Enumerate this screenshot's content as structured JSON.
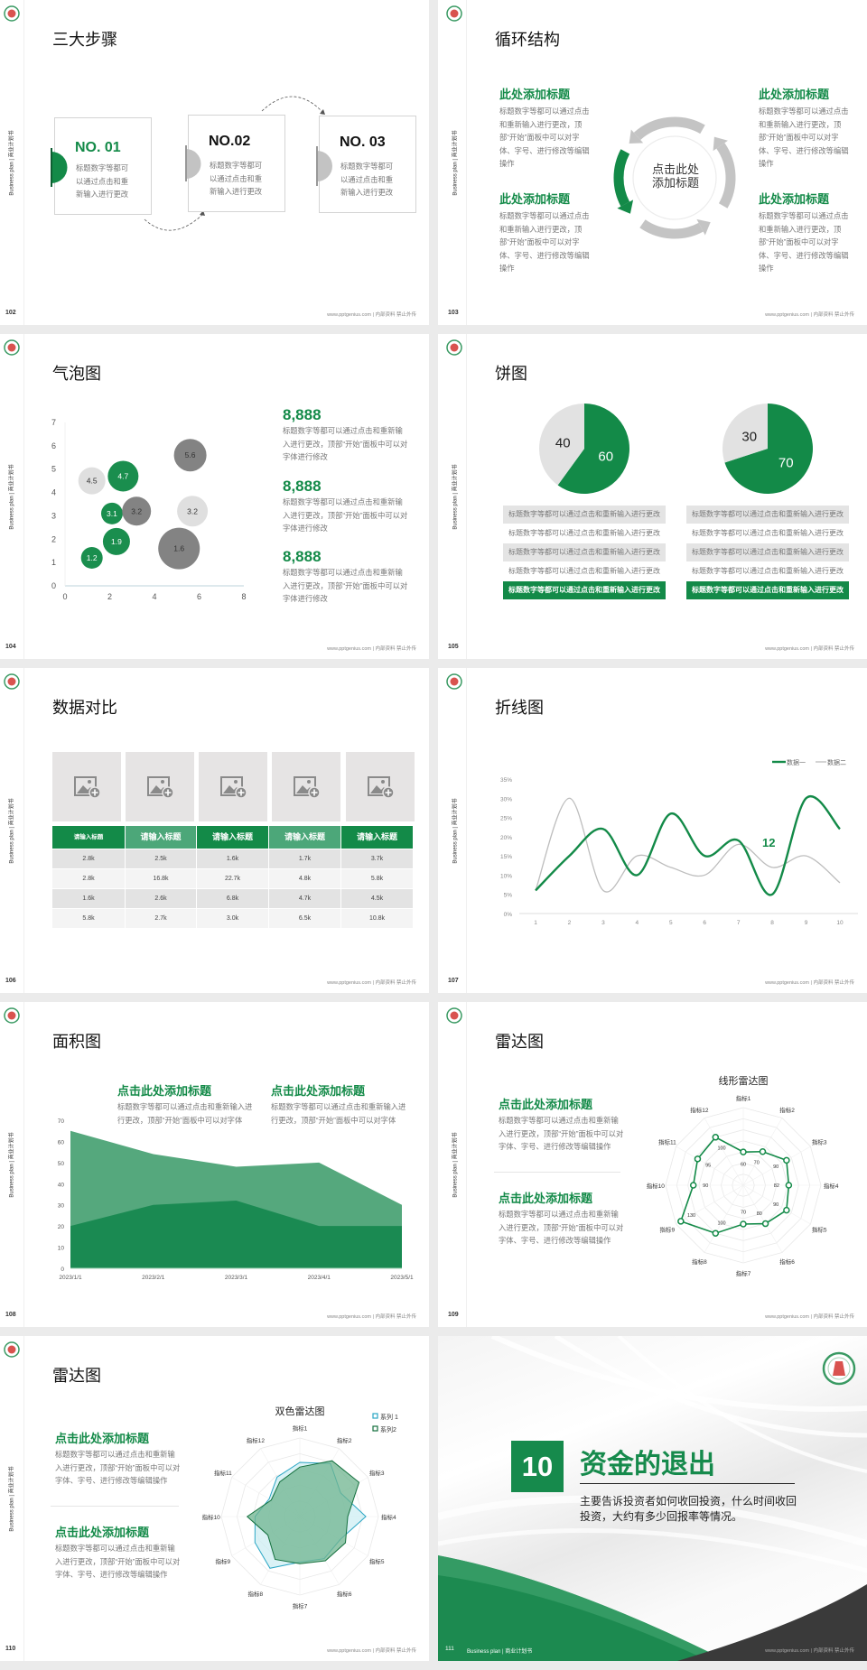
{
  "common": {
    "sidebar_text": "Business plan | 商业计划书",
    "footer": "www.pptgenius.com | 内部资料 禁止外传",
    "logo_icon": "school-seal-logo"
  },
  "colors": {
    "green": "#138a48",
    "green_light": "#55a87d",
    "gray_light": "#e2e2e2",
    "gray_dark": "#7f7f7f",
    "cyan": "#2aa6c4"
  },
  "slides": {
    "s102": {
      "page": "102",
      "title": "三大步骤",
      "steps": [
        {
          "label": "NO. 01",
          "body": "标题数字等都可以通过点击和重新输入进行更改"
        },
        {
          "label": "NO.02",
          "body": "标题数字等都可以通过点击和重新输入进行更改"
        },
        {
          "label": "NO. 03",
          "body": "标题数字等都可以通过点击和重新输入进行更改"
        }
      ]
    },
    "s103": {
      "page": "103",
      "title": "循环结构",
      "center": "点击此处添加标题",
      "blocks": [
        {
          "title": "此处添加标题",
          "body": "标题数字等都可以通过点击和重新输入进行更改，顶部“开始”面板中可以对字体、字号、进行修改等编辑操作"
        },
        {
          "title": "此处添加标题",
          "body": "标题数字等都可以通过点击和重新输入进行更改，顶部“开始”面板中可以对字体、字号、进行修改等编辑操作"
        },
        {
          "title": "此处添加标题",
          "body": "标题数字等都可以通过点击和重新输入进行更改，顶部“开始”面板中可以对字体、字号、进行修改等编辑操作"
        },
        {
          "title": "此处添加标题",
          "body": "标题数字等都可以通过点击和重新输入进行更改，顶部“开始”面板中可以对字体、字号、进行修改等编辑操作"
        }
      ]
    },
    "s104": {
      "page": "104",
      "title": "气泡图",
      "stats": [
        {
          "value": "8,888",
          "body": "标题数字等都可以通过点击和重新输入进行更改，顶部“开始”面板中可以对字体进行修改"
        },
        {
          "value": "8,888",
          "body": "标题数字等都可以通过点击和重新输入进行更改，顶部“开始”面板中可以对字体进行修改"
        },
        {
          "value": "8,888",
          "body": "标题数字等都可以通过点击和重新输入进行更改，顶部“开始”面板中可以对字体进行修改"
        }
      ]
    },
    "s105": {
      "page": "105",
      "title": "饼图",
      "rows_left": [
        "标题数字等都可以通过点击和重新输入进行更改",
        "标题数字等都可以通过点击和重新输入进行更改",
        "标题数字等都可以通过点击和重新输入进行更改",
        "标题数字等都可以通过点击和重新输入进行更改",
        "标题数字等都可以通过点击和重新输入进行更改"
      ],
      "rows_right": [
        "标题数字等都可以通过点击和重新输入进行更改",
        "标题数字等都可以通过点击和重新输入进行更改",
        "标题数字等都可以通过点击和重新输入进行更改",
        "标题数字等都可以通过点击和重新输入进行更改",
        "标题数字等都可以通过点击和重新输入进行更改"
      ]
    },
    "s106": {
      "page": "106",
      "title": "数据对比",
      "image_icon": "add-image-icon",
      "headers": [
        "请输入标题",
        "请输入标题",
        "请输入标题",
        "请输入标题",
        "请输入标题"
      ],
      "rows": [
        [
          "2.8k",
          "2.5k",
          "1.6k",
          "1.7k",
          "3.7k"
        ],
        [
          "2.8k",
          "16.8k",
          "22.7k",
          "4.8k",
          "5.8k"
        ],
        [
          "1.6k",
          "2.6k",
          "6.8k",
          "4.7k",
          "4.5k"
        ],
        [
          "5.8k",
          "2.7k",
          "3.0k",
          "6.5k",
          "10.8k"
        ]
      ]
    },
    "s107": {
      "page": "107",
      "title": "折线图",
      "annotation": "12"
    },
    "s108": {
      "page": "108",
      "title": "面积图",
      "blocks": [
        {
          "title": "点击此处添加标题",
          "body": "标题数字等都可以通过点击和重新输入进行更改，顶部“开始”面板中可以对字体"
        },
        {
          "title": "点击此处添加标题",
          "body": "标题数字等都可以通过点击和重新输入进行更改，顶部“开始”面板中可以对字体"
        }
      ]
    },
    "s109": {
      "page": "109",
      "title": "雷达图",
      "blocks": [
        {
          "title": "点击此处添加标题",
          "body": "标题数字等都可以通过点击和重新输入进行更改，顶部“开始”面板中可以对字体、字号、进行修改等编辑操作"
        },
        {
          "title": "点击此处添加标题",
          "body": "标题数字等都可以通过点击和重新输入进行更改，顶部“开始”面板中可以对字体、字号、进行修改等编辑操作"
        }
      ]
    },
    "s110": {
      "page": "110",
      "title": "雷达图",
      "blocks": [
        {
          "title": "点击此处添加标题",
          "body": "标题数字等都可以通过点击和重新输入进行更改，顶部“开始”面板中可以对字体、字号、进行修改等编辑操作"
        },
        {
          "title": "点击此处添加标题",
          "body": "标题数字等都可以通过点击和重新输入进行更改，顶部“开始”面板中可以对字体、字号、进行修改等编辑操作"
        }
      ]
    },
    "s111": {
      "page": "111",
      "number": "10",
      "title": "资金的退出",
      "body": "主要告诉投资者如何收回投资，什么时间收回投资，大约有多少回报率等情况。",
      "footer_left": "Business plan | 商业计划书"
    }
  },
  "chart_data": [
    {
      "id": "bubble",
      "type": "scatter",
      "subtype": "bubble",
      "xlim": [
        0,
        8
      ],
      "ylim": [
        0,
        7
      ],
      "xticks": [
        "0",
        "2",
        "4",
        "6",
        "8"
      ],
      "yticks": [
        "0",
        "1",
        "2",
        "3",
        "4",
        "5",
        "6",
        "7"
      ],
      "points": [
        {
          "x": 1.2,
          "y": 1.2,
          "size": 12,
          "label": "1.2",
          "color": "#138a48"
        },
        {
          "x": 2.3,
          "y": 1.9,
          "size": 15,
          "label": "1.9",
          "color": "#138a48"
        },
        {
          "x": 2.1,
          "y": 3.1,
          "size": 12,
          "label": "3.1",
          "color": "#138a48"
        },
        {
          "x": 1.2,
          "y": 4.5,
          "size": 15,
          "label": "4.5",
          "color": "#dedede"
        },
        {
          "x": 2.6,
          "y": 4.7,
          "size": 17,
          "label": "4.7",
          "color": "#138a48"
        },
        {
          "x": 3.2,
          "y": 3.2,
          "size": 16,
          "label": "3.2",
          "color": "#7f7f7f"
        },
        {
          "x": 5.6,
          "y": 5.6,
          "size": 18,
          "label": "5.6",
          "color": "#7f7f7f"
        },
        {
          "x": 5.7,
          "y": 3.2,
          "size": 17,
          "label": "3.2",
          "color": "#dedede"
        },
        {
          "x": 5.1,
          "y": 1.6,
          "size": 23,
          "label": "1.6",
          "color": "#7f7f7f"
        }
      ]
    },
    {
      "id": "pie1",
      "type": "pie",
      "values": [
        60,
        40
      ],
      "labels": [
        "60",
        "40"
      ],
      "colors": [
        "#138a48",
        "#e2e2e2"
      ]
    },
    {
      "id": "pie2",
      "type": "pie",
      "values": [
        70,
        30
      ],
      "labels": [
        "70",
        "30"
      ],
      "colors": [
        "#138a48",
        "#e2e2e2"
      ]
    },
    {
      "id": "line",
      "type": "line",
      "x": [
        1,
        2,
        3,
        4,
        5,
        6,
        7,
        8,
        9,
        10
      ],
      "xticks": [
        "1",
        "2",
        "3",
        "4",
        "5",
        "6",
        "7",
        "8",
        "9",
        "10"
      ],
      "yticks": [
        "0%",
        "5%",
        "10%",
        "15%",
        "20%",
        "25%",
        "30%",
        "35%"
      ],
      "ylim": [
        0,
        35
      ],
      "legend": "top-right",
      "series": [
        {
          "name": "数据一",
          "color": "#138a48",
          "values": [
            6,
            15,
            22,
            10,
            26,
            15,
            19,
            5,
            30,
            22
          ]
        },
        {
          "name": "数据二",
          "color": "#bdbdbd",
          "values": [
            6,
            30,
            6,
            15,
            12,
            10,
            18,
            12,
            15,
            8
          ]
        }
      ]
    },
    {
      "id": "area",
      "type": "area",
      "categories": [
        "2023/1/1",
        "2023/2/1",
        "2023/3/1",
        "2023/4/1",
        "2023/5/1"
      ],
      "yticks": [
        "0",
        "10",
        "20",
        "30",
        "40",
        "50",
        "60",
        "70"
      ],
      "ylim": [
        0,
        70
      ],
      "series": [
        {
          "color": "#55a87d",
          "values": [
            65,
            54,
            48,
            50,
            30
          ]
        },
        {
          "color": "#1a8a52",
          "values": [
            20,
            30,
            32,
            20,
            20
          ]
        }
      ]
    },
    {
      "id": "radar1",
      "type": "radar",
      "title": "线形雷达图",
      "rmax": 140,
      "axes": [
        "指标1",
        "指标2",
        "指标3",
        "指标4",
        "指标5",
        "指标6",
        "指标7",
        "指标8",
        "指标9",
        "指标10",
        "指标11",
        "指标12"
      ],
      "series": [
        {
          "color": "#138a48",
          "values": [
            60,
            70,
            90,
            82,
            90,
            80,
            70,
            100,
            130,
            90,
            95,
            100
          ],
          "labels": [
            "60",
            "70",
            "90",
            "82",
            "90",
            "80",
            "70",
            "100",
            "130",
            "90",
            "95",
            "100"
          ]
        }
      ]
    },
    {
      "id": "radar2",
      "type": "radar",
      "title": "双色雷达图",
      "rmax": 100,
      "legend": "top-right",
      "axes": [
        "指标1",
        "指标2",
        "指标3",
        "指标4",
        "指标5",
        "指标6",
        "指标7",
        "指标8",
        "指标9",
        "指标10",
        "指标11",
        "指标12"
      ],
      "series": [
        {
          "name": "系列 1",
          "color": "#2aa6c4",
          "fill": "#cdeef3",
          "values": [
            69,
            78,
            60,
            84,
            59,
            62,
            58,
            76,
            66,
            57,
            45,
            58
          ]
        },
        {
          "name": "系列2",
          "color": "#14703e",
          "fill": "#6fb48f",
          "values": [
            63,
            82,
            87,
            61,
            67,
            65,
            60,
            63,
            47,
            67,
            42,
            51
          ]
        }
      ]
    }
  ]
}
